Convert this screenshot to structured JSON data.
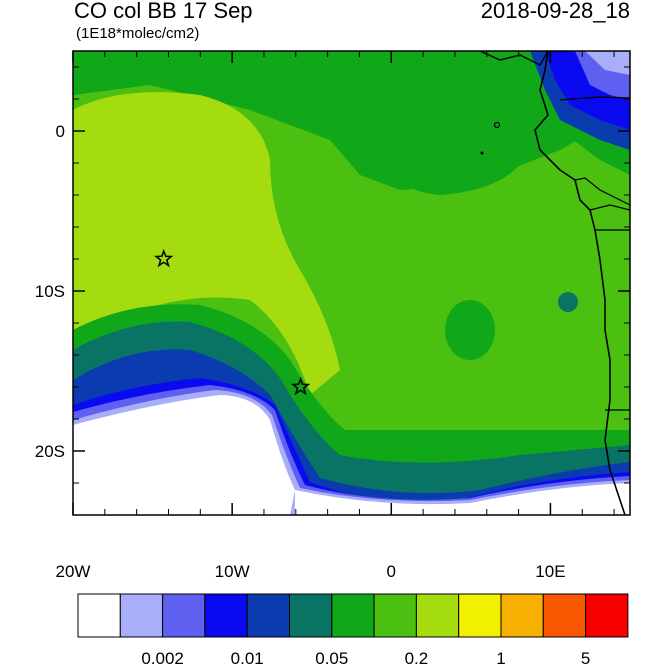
{
  "header": {
    "title": "CO col BB 17 Sep",
    "timestamp": "2018-09-28_18",
    "units": "(1E18*molec/cm2)"
  },
  "map": {
    "lon_range": [
      -20,
      15
    ],
    "lat_range": [
      -24,
      5
    ],
    "x_ticks": [
      {
        "lon": -20,
        "label": "20W"
      },
      {
        "lon": -10,
        "label": "10W"
      },
      {
        "lon": 0,
        "label": "0"
      },
      {
        "lon": 10,
        "label": "10E"
      }
    ],
    "y_ticks": [
      {
        "lat": 0,
        "label": "0"
      },
      {
        "lat": -10,
        "label": "10S"
      },
      {
        "lat": -20,
        "label": "20S"
      }
    ],
    "markers": [
      {
        "name": "star-marker",
        "lon": -14.3,
        "lat": -8.0
      },
      {
        "name": "star-marker",
        "lon": -5.7,
        "lat": -16.0
      }
    ]
  },
  "colorbar": {
    "colors": [
      "#ffffff",
      "#a8aef8",
      "#6060f0",
      "#0a0af0",
      "#0a3cb0",
      "#0a7464",
      "#10a818",
      "#4cc010",
      "#a4dc10",
      "#f0f000",
      "#f8b000",
      "#f85800",
      "#f80000"
    ],
    "labels": [
      {
        "boundary": 2,
        "text": "0.002"
      },
      {
        "boundary": 4,
        "text": "0.01"
      },
      {
        "boundary": 6,
        "text": "0.05"
      },
      {
        "boundary": 8,
        "text": "0.2"
      },
      {
        "boundary": 10,
        "text": "1"
      },
      {
        "boundary": 12,
        "text": "5"
      }
    ]
  }
}
